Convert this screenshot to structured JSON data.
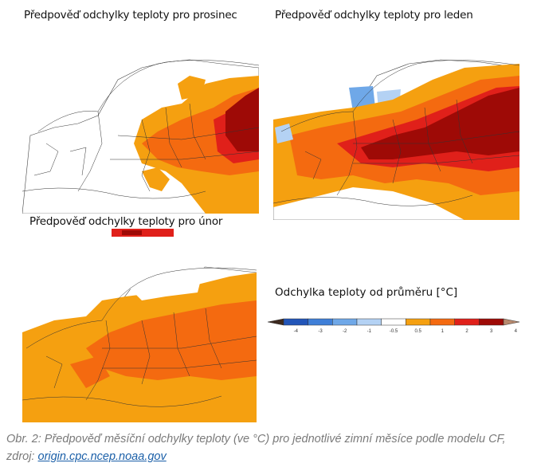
{
  "maps": [
    {
      "title": "Předpověď odchylky teploty pro prosinec"
    },
    {
      "title": "Předpověď odchylky teploty pro leden"
    },
    {
      "title": "Předpověď odchylky teploty pro únor"
    }
  ],
  "legend": {
    "title": "Odchylka teploty od průměru [°C]",
    "ticks": [
      "-4",
      "-3",
      "-2",
      "-1",
      "-0.5",
      "0.5",
      "1",
      "2",
      "3",
      "4"
    ],
    "colors": [
      "#3d2a1f",
      "#2255b8",
      "#3f7fd8",
      "#6fa8e8",
      "#b4d2f4",
      "#ffffff",
      "#f5a010",
      "#f46a10",
      "#e0201a",
      "#9e0a06",
      "#b88a6e"
    ]
  },
  "caption": {
    "text": "Obr. 2: Předpověď měsíční odchylky teploty (ve °C) pro jednotlivé zimní měsíce podle modelu CF, zdroj: ",
    "link": "origin.cpc.ncep.noaa.gov"
  },
  "colors": {
    "orange": "#f5a010",
    "red_orange": "#f46a10",
    "red": "#e0201a",
    "dark_red": "#9e0a06",
    "light_blue": "#6fa8e8"
  }
}
